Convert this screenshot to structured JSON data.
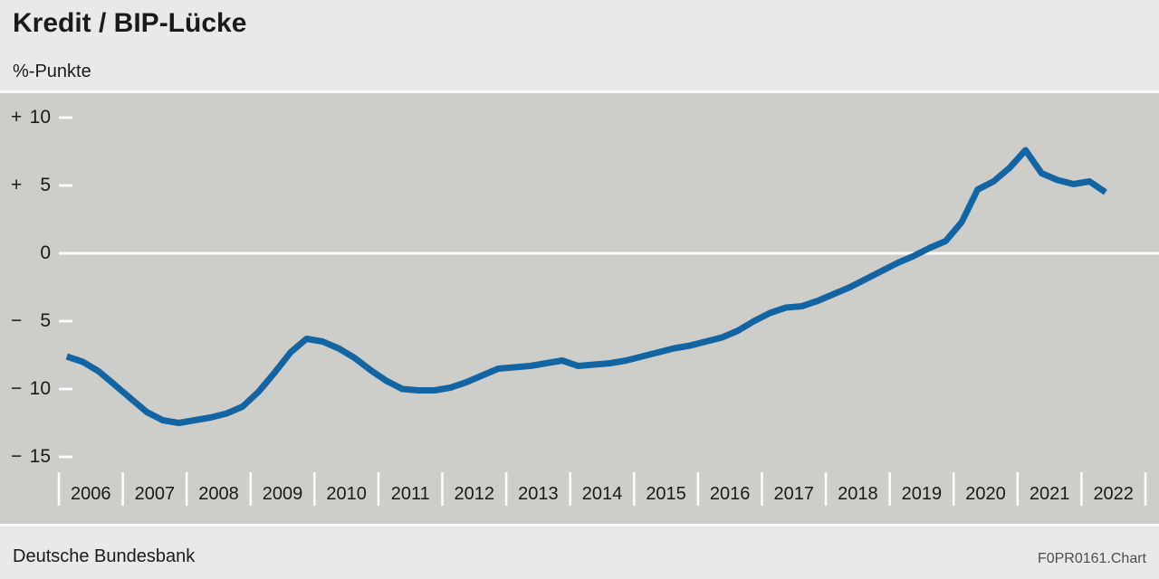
{
  "header": {
    "title": "Kredit / BIP-Lücke",
    "unit_label": "%-Punkte"
  },
  "footer": {
    "source": "Deutsche Bundesbank",
    "chart_id": "F0PR0161.Chart"
  },
  "colors": {
    "page_bg": "#e9e9e7",
    "plot_bg": "#cdcdca",
    "line": "#1264a2",
    "axis_marks": "#ffffff",
    "text": "#1a1a18",
    "muted_text": "#4d4d4b"
  },
  "chart_data": {
    "type": "line",
    "title": "Kredit / BIP-Lücke",
    "ylabel": "%-Punkte",
    "ylim": [
      -15,
      10
    ],
    "grid": "zero-line-only",
    "legend": "none",
    "y_ticks": [
      {
        "sign": "+",
        "label": "10",
        "value": 10
      },
      {
        "sign": "+",
        "label": "5",
        "value": 5
      },
      {
        "sign": "",
        "label": "0",
        "value": 0
      },
      {
        "sign": "−",
        "label": "5",
        "value": -5
      },
      {
        "sign": "−",
        "label": "10",
        "value": -10
      },
      {
        "sign": "−",
        "label": "15",
        "value": -15
      }
    ],
    "categories": [
      "2006",
      "2007",
      "2008",
      "2009",
      "2010",
      "2011",
      "2012",
      "2013",
      "2014",
      "2015",
      "2016",
      "2017",
      "2018",
      "2019",
      "2020",
      "2021",
      "2022"
    ],
    "frequency": "quarterly",
    "x_start": "2006 Q1",
    "x_end": "2022 Q2",
    "series": [
      {
        "name": "Kredit / BIP-Lücke",
        "values": [
          -7.6,
          -8.0,
          -8.7,
          -9.7,
          -10.7,
          -11.7,
          -12.3,
          -12.5,
          -12.3,
          -12.1,
          -11.8,
          -11.3,
          -10.2,
          -8.8,
          -7.3,
          -6.3,
          -6.5,
          -7.0,
          -7.7,
          -8.6,
          -9.4,
          -10.0,
          -10.1,
          -10.1,
          -9.9,
          -9.5,
          -9.0,
          -8.5,
          -8.4,
          -8.3,
          -8.1,
          -7.9,
          -8.3,
          -8.2,
          -8.1,
          -7.9,
          -7.6,
          -7.3,
          -7.0,
          -6.8,
          -6.5,
          -6.2,
          -5.7,
          -5.0,
          -4.4,
          -4.0,
          -3.9,
          -3.5,
          -3.0,
          -2.5,
          -1.9,
          -1.3,
          -0.7,
          -0.2,
          0.4,
          0.9,
          2.3,
          4.7,
          5.3,
          6.3,
          7.6,
          5.9,
          5.4,
          5.1,
          5.3,
          4.5
        ]
      }
    ]
  }
}
